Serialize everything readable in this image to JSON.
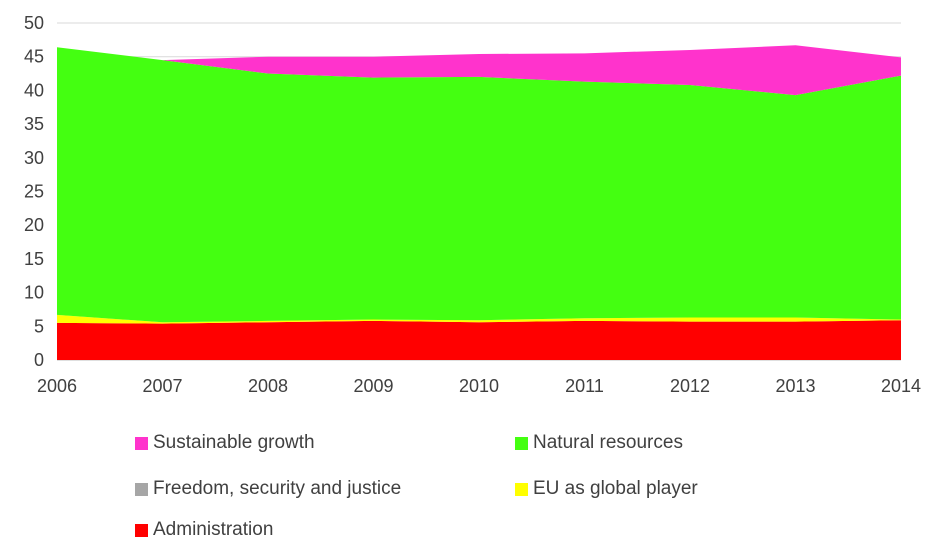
{
  "chart_data": {
    "type": "area",
    "stacked": true,
    "x": [
      "2006",
      "2007",
      "2008",
      "2009",
      "2010",
      "2011",
      "2012",
      "2013",
      "2014"
    ],
    "ylim": [
      0,
      50
    ],
    "yticks": [
      "0",
      "5",
      "10",
      "15",
      "20",
      "25",
      "30",
      "35",
      "40",
      "45",
      "50"
    ],
    "grid": "horizontal",
    "legend_position": "bottom",
    "series": [
      {
        "name": "Administration",
        "color": "#ff0000",
        "values": [
          5.5,
          5.4,
          5.6,
          5.8,
          5.6,
          5.8,
          5.7,
          5.7,
          5.9
        ]
      },
      {
        "name": "EU as global player",
        "color": "#ffff00",
        "values": [
          1.2,
          0.2,
          0.2,
          0.2,
          0.3,
          0.4,
          0.6,
          0.6,
          0.1
        ]
      },
      {
        "name": "Freedom, security and justice",
        "color": "#a6a6a6",
        "values": [
          0.0,
          0.0,
          0.0,
          0.0,
          0.0,
          0.0,
          0.0,
          0.0,
          0.0
        ]
      },
      {
        "name": "Natural resources",
        "color": "#44ff11",
        "values": [
          39.7,
          38.9,
          36.7,
          35.9,
          36.1,
          35.1,
          34.5,
          33.0,
          36.2
        ]
      },
      {
        "name": "Sustainable growth",
        "color": "#ff33cc",
        "values": [
          0.0,
          0.0,
          2.5,
          3.1,
          3.4,
          4.2,
          5.2,
          7.4,
          2.7
        ]
      }
    ],
    "legend": [
      {
        "label": "Sustainable growth",
        "color": "#ff33cc"
      },
      {
        "label": "Natural resources",
        "color": "#44ff11"
      },
      {
        "label": "Freedom, security and justice",
        "color": "#a6a6a6"
      },
      {
        "label": "EU as global player",
        "color": "#ffff00"
      },
      {
        "label": "Administration",
        "color": "#ff0000"
      }
    ]
  }
}
